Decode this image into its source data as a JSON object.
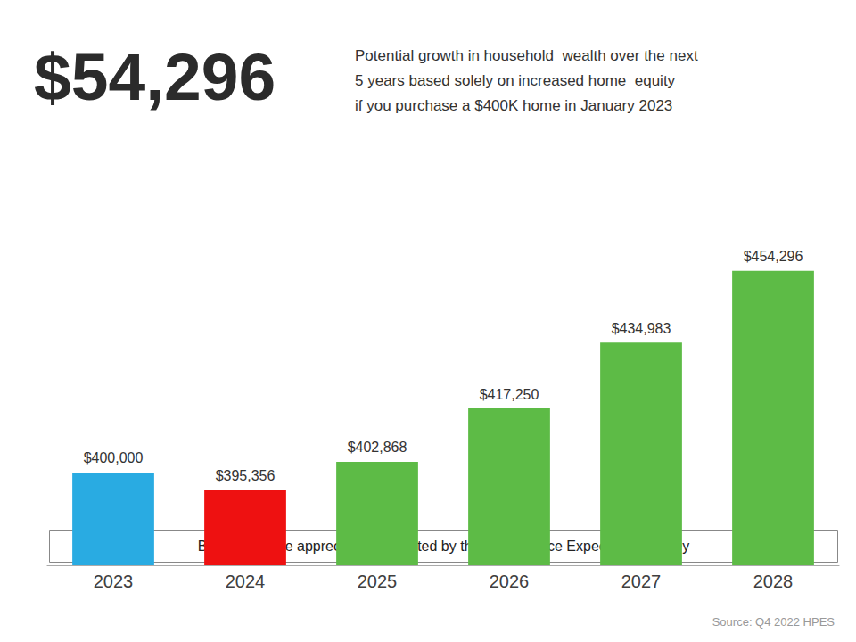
{
  "chart_data": {
    "type": "bar",
    "categories": [
      "2023",
      "2024",
      "2025",
      "2026",
      "2027",
      "2028"
    ],
    "values": [
      400000,
      395356,
      402868,
      417250,
      434983,
      454296
    ],
    "value_labels": [
      "$400,000",
      "$395,356",
      "$402,868",
      "$417,250",
      "$434,983",
      "$454,296"
    ],
    "colors": [
      "#29ABE2",
      "#EE1111",
      "#5DBB46",
      "#5DBB46",
      "#5DBB46",
      "#5DBB46"
    ],
    "data_labels": true,
    "ylim": [
      375000,
      472000
    ],
    "tick_labels": "x",
    "grid": false,
    "annotations": [
      "$54,296",
      "Potential growth in household  wealth over the next",
      "5 years based solely on increased home  equity",
      "if you purchase a $400K home in January 2023",
      "Based on price appreciation projected by the Home  Price Expectation Survey",
      "Source: Q4 2022 HPES"
    ]
  }
}
